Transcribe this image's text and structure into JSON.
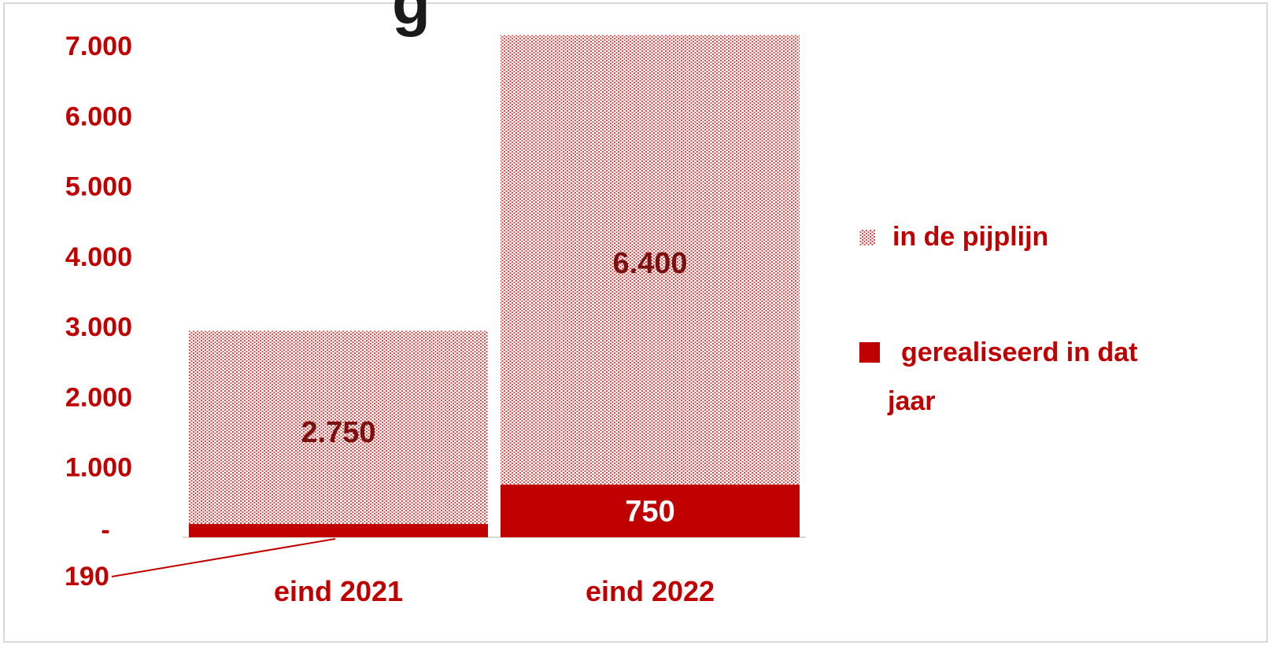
{
  "page": {
    "cropped_title_fragment": "g"
  },
  "colors": {
    "accent": "#c00000",
    "label_dark": "#7a1010",
    "axis_line": "#d9d9d9",
    "background": "#ffffff"
  },
  "chart_data": {
    "type": "bar",
    "stacked": true,
    "categories": [
      "eind 2021",
      "eind 2022"
    ],
    "series": [
      {
        "name": "gerealiseerd in dat jaar",
        "values": [
          190,
          750
        ],
        "labels": [
          "190",
          "750"
        ],
        "style": "solid"
      },
      {
        "name": "in de pijplijn",
        "values": [
          2750,
          6400
        ],
        "labels": [
          "2.750",
          "6.400"
        ],
        "style": "dotted"
      }
    ],
    "ylim": [
      0,
      7000
    ],
    "yticks": [
      {
        "value": 0,
        "label": "-"
      },
      {
        "value": 1000,
        "label": "1.000"
      },
      {
        "value": 2000,
        "label": "2.000"
      },
      {
        "value": 3000,
        "label": "3.000"
      },
      {
        "value": 4000,
        "label": "4.000"
      },
      {
        "value": 5000,
        "label": "5.000"
      },
      {
        "value": 6000,
        "label": "6.000"
      },
      {
        "value": 7000,
        "label": "7.000"
      }
    ],
    "legend": {
      "placement": "right",
      "items": [
        {
          "label": "in de pijplijn",
          "style": "dotted"
        },
        {
          "label_lines": [
            "gerealiseerd in dat",
            "jaar"
          ],
          "style": "solid"
        }
      ]
    },
    "grid": false,
    "title": "",
    "xlabel": "",
    "ylabel": ""
  }
}
